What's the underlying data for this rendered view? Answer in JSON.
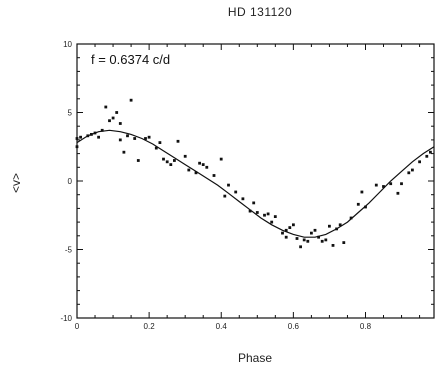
{
  "chart_data": {
    "type": "scatter",
    "title": "HD 131120",
    "xlabel": "Phase",
    "ylabel": "<v>",
    "annotation": "f = 0.6374 c/d",
    "xlim": [
      0,
      0.99
    ],
    "ylim": [
      -10,
      10
    ],
    "x_ticks": [
      0,
      0.2,
      0.4,
      0.6,
      0.8
    ],
    "x_tick_labels": [
      "0",
      "0.2",
      "0.4",
      "0.6",
      "0.8"
    ],
    "y_ticks": [
      -10,
      -5,
      0,
      5,
      10
    ],
    "y_tick_labels": [
      "-10",
      "-5",
      "0",
      "5",
      "10"
    ],
    "grid": false,
    "series": [
      {
        "kind": "points",
        "x": [
          0.0,
          0.0,
          0.01,
          0.03,
          0.04,
          0.05,
          0.06,
          0.07,
          0.08,
          0.09,
          0.1,
          0.11,
          0.12,
          0.12,
          0.13,
          0.14,
          0.15,
          0.16,
          0.17,
          0.19,
          0.2,
          0.22,
          0.23,
          0.24,
          0.25,
          0.26,
          0.27,
          0.28,
          0.3,
          0.31,
          0.33,
          0.34,
          0.35,
          0.36,
          0.38,
          0.4,
          0.41,
          0.42,
          0.44,
          0.46,
          0.48,
          0.49,
          0.5,
          0.52,
          0.53,
          0.54,
          0.55,
          0.57,
          0.58,
          0.58,
          0.59,
          0.6,
          0.61,
          0.62,
          0.63,
          0.64,
          0.65,
          0.66,
          0.67,
          0.68,
          0.69,
          0.7,
          0.71,
          0.72,
          0.73,
          0.74,
          0.76,
          0.78,
          0.79,
          0.8,
          0.83,
          0.85,
          0.87,
          0.89,
          0.9,
          0.92,
          0.93,
          0.95,
          0.97,
          0.98
        ],
        "y": [
          2.5,
          3.1,
          3.2,
          3.3,
          3.4,
          3.5,
          3.2,
          3.7,
          5.4,
          4.4,
          4.6,
          5.0,
          3.0,
          4.2,
          2.1,
          3.3,
          5.9,
          3.1,
          1.5,
          3.1,
          3.2,
          2.4,
          2.8,
          1.6,
          1.4,
          1.2,
          1.5,
          2.9,
          1.8,
          0.8,
          0.6,
          1.3,
          1.2,
          1.0,
          0.4,
          1.6,
          -1.1,
          -0.3,
          -0.8,
          -1.3,
          -2.2,
          -1.6,
          -2.3,
          -2.5,
          -2.4,
          -3.0,
          -2.6,
          -3.8,
          -4.1,
          -3.6,
          -3.4,
          -3.2,
          -4.2,
          -4.8,
          -4.3,
          -4.4,
          -3.8,
          -3.6,
          -4.1,
          -4.4,
          -4.3,
          -3.3,
          -4.7,
          -3.5,
          -3.2,
          -4.5,
          -2.7,
          -1.7,
          -0.8,
          -1.9,
          -0.3,
          -0.4,
          -0.2,
          -0.9,
          -0.2,
          0.6,
          0.8,
          1.4,
          1.8,
          2.1
        ]
      },
      {
        "kind": "fit",
        "x": [
          0.0,
          0.03,
          0.06,
          0.09,
          0.12,
          0.15,
          0.18,
          0.21,
          0.24,
          0.27,
          0.3,
          0.33,
          0.36,
          0.39,
          0.42,
          0.45,
          0.48,
          0.51,
          0.54,
          0.57,
          0.6,
          0.63,
          0.66,
          0.69,
          0.72,
          0.75,
          0.78,
          0.81,
          0.84,
          0.87,
          0.9,
          0.93,
          0.96,
          0.99
        ],
        "y": [
          2.8,
          3.3,
          3.6,
          3.7,
          3.6,
          3.4,
          3.1,
          2.7,
          2.2,
          1.7,
          1.2,
          0.7,
          0.2,
          -0.3,
          -0.9,
          -1.5,
          -2.1,
          -2.7,
          -3.2,
          -3.6,
          -3.9,
          -4.1,
          -4.1,
          -3.9,
          -3.5,
          -3.0,
          -2.3,
          -1.6,
          -0.8,
          0.0,
          0.7,
          1.4,
          2.0,
          2.5
        ]
      }
    ]
  }
}
